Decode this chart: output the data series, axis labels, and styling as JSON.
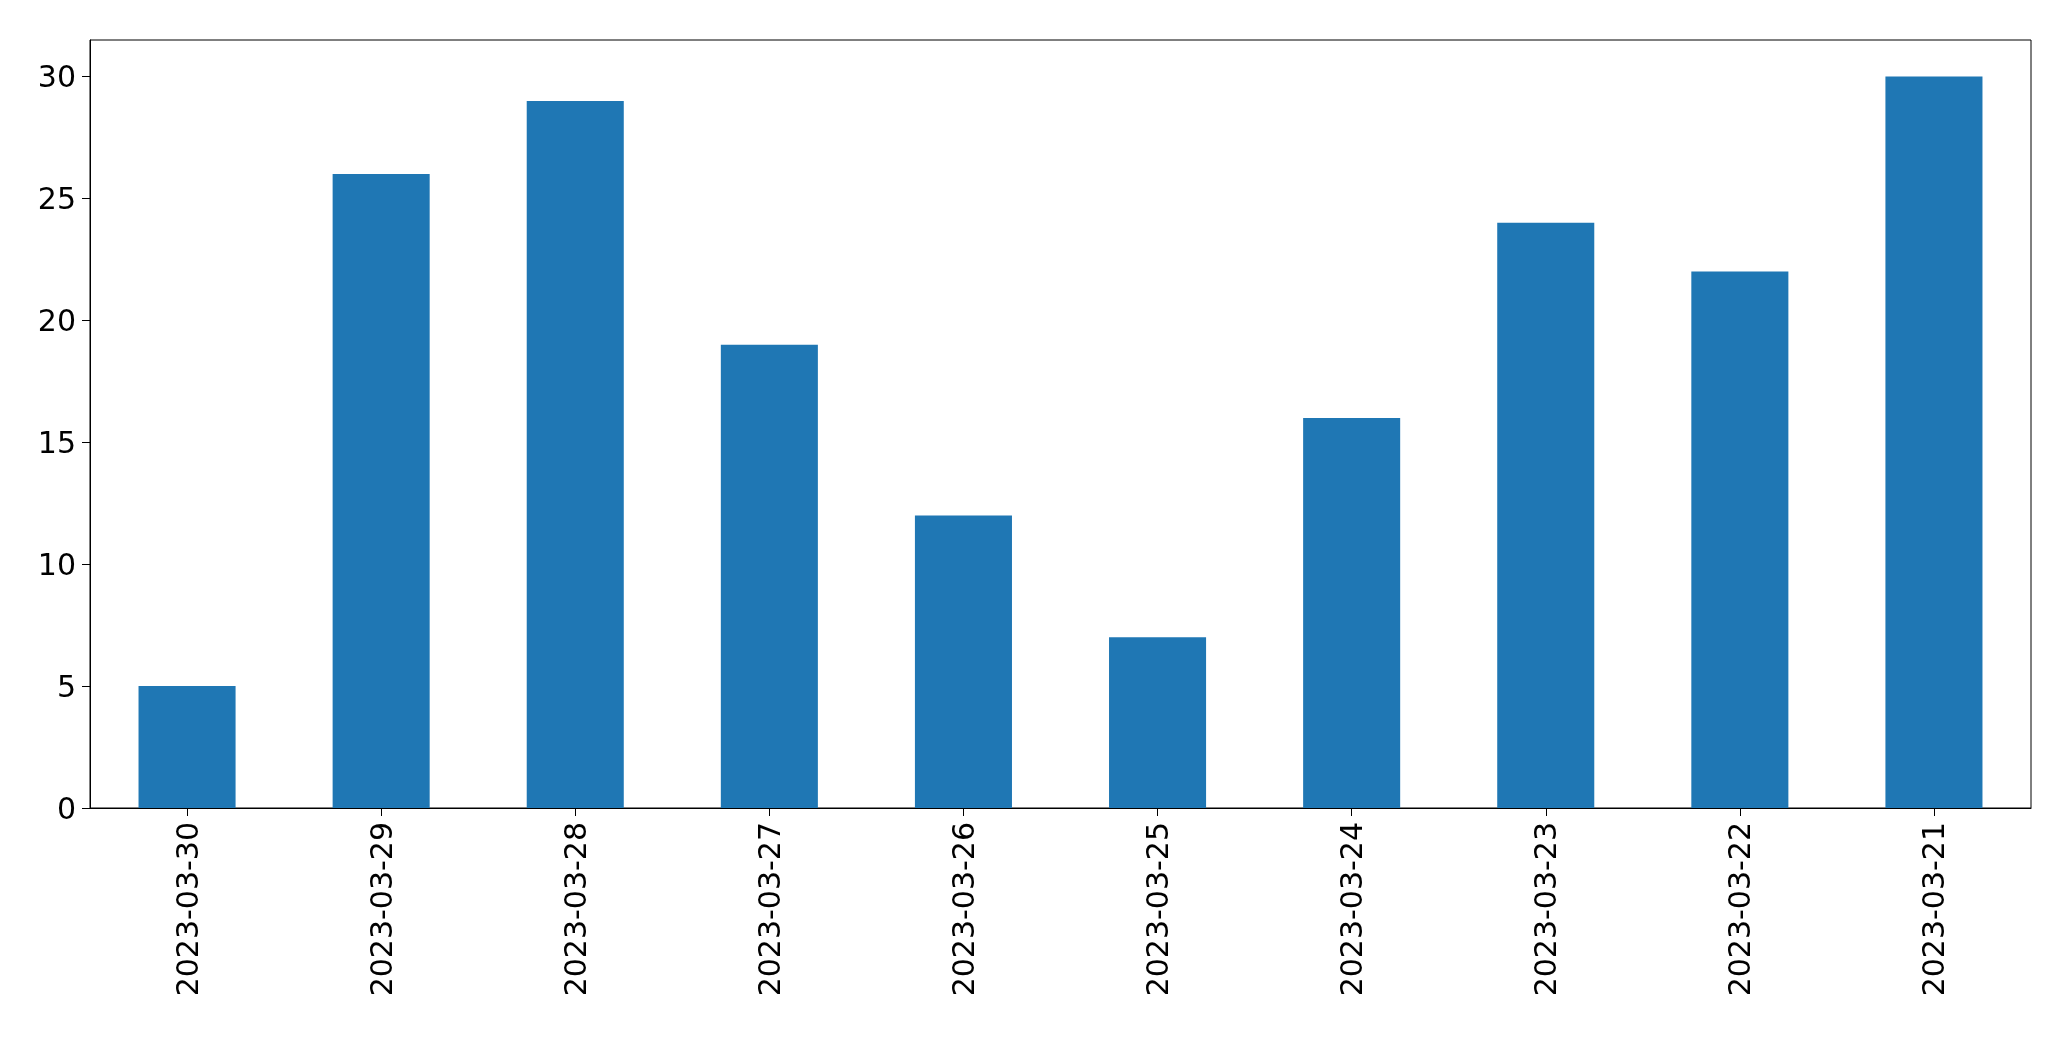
{
  "chart_data": {
    "type": "bar",
    "categories": [
      "2023-03-30",
      "2023-03-29",
      "2023-03-28",
      "2023-03-27",
      "2023-03-26",
      "2023-03-25",
      "2023-03-24",
      "2023-03-23",
      "2023-03-22",
      "2023-03-21"
    ],
    "values": [
      5,
      26,
      29,
      19,
      12,
      7,
      16,
      24,
      22,
      30
    ],
    "color": "#1f77b4",
    "ylim": [
      0,
      31.5
    ],
    "yticks": [
      0,
      5,
      10,
      15,
      20,
      25,
      30
    ],
    "grid": false
  }
}
